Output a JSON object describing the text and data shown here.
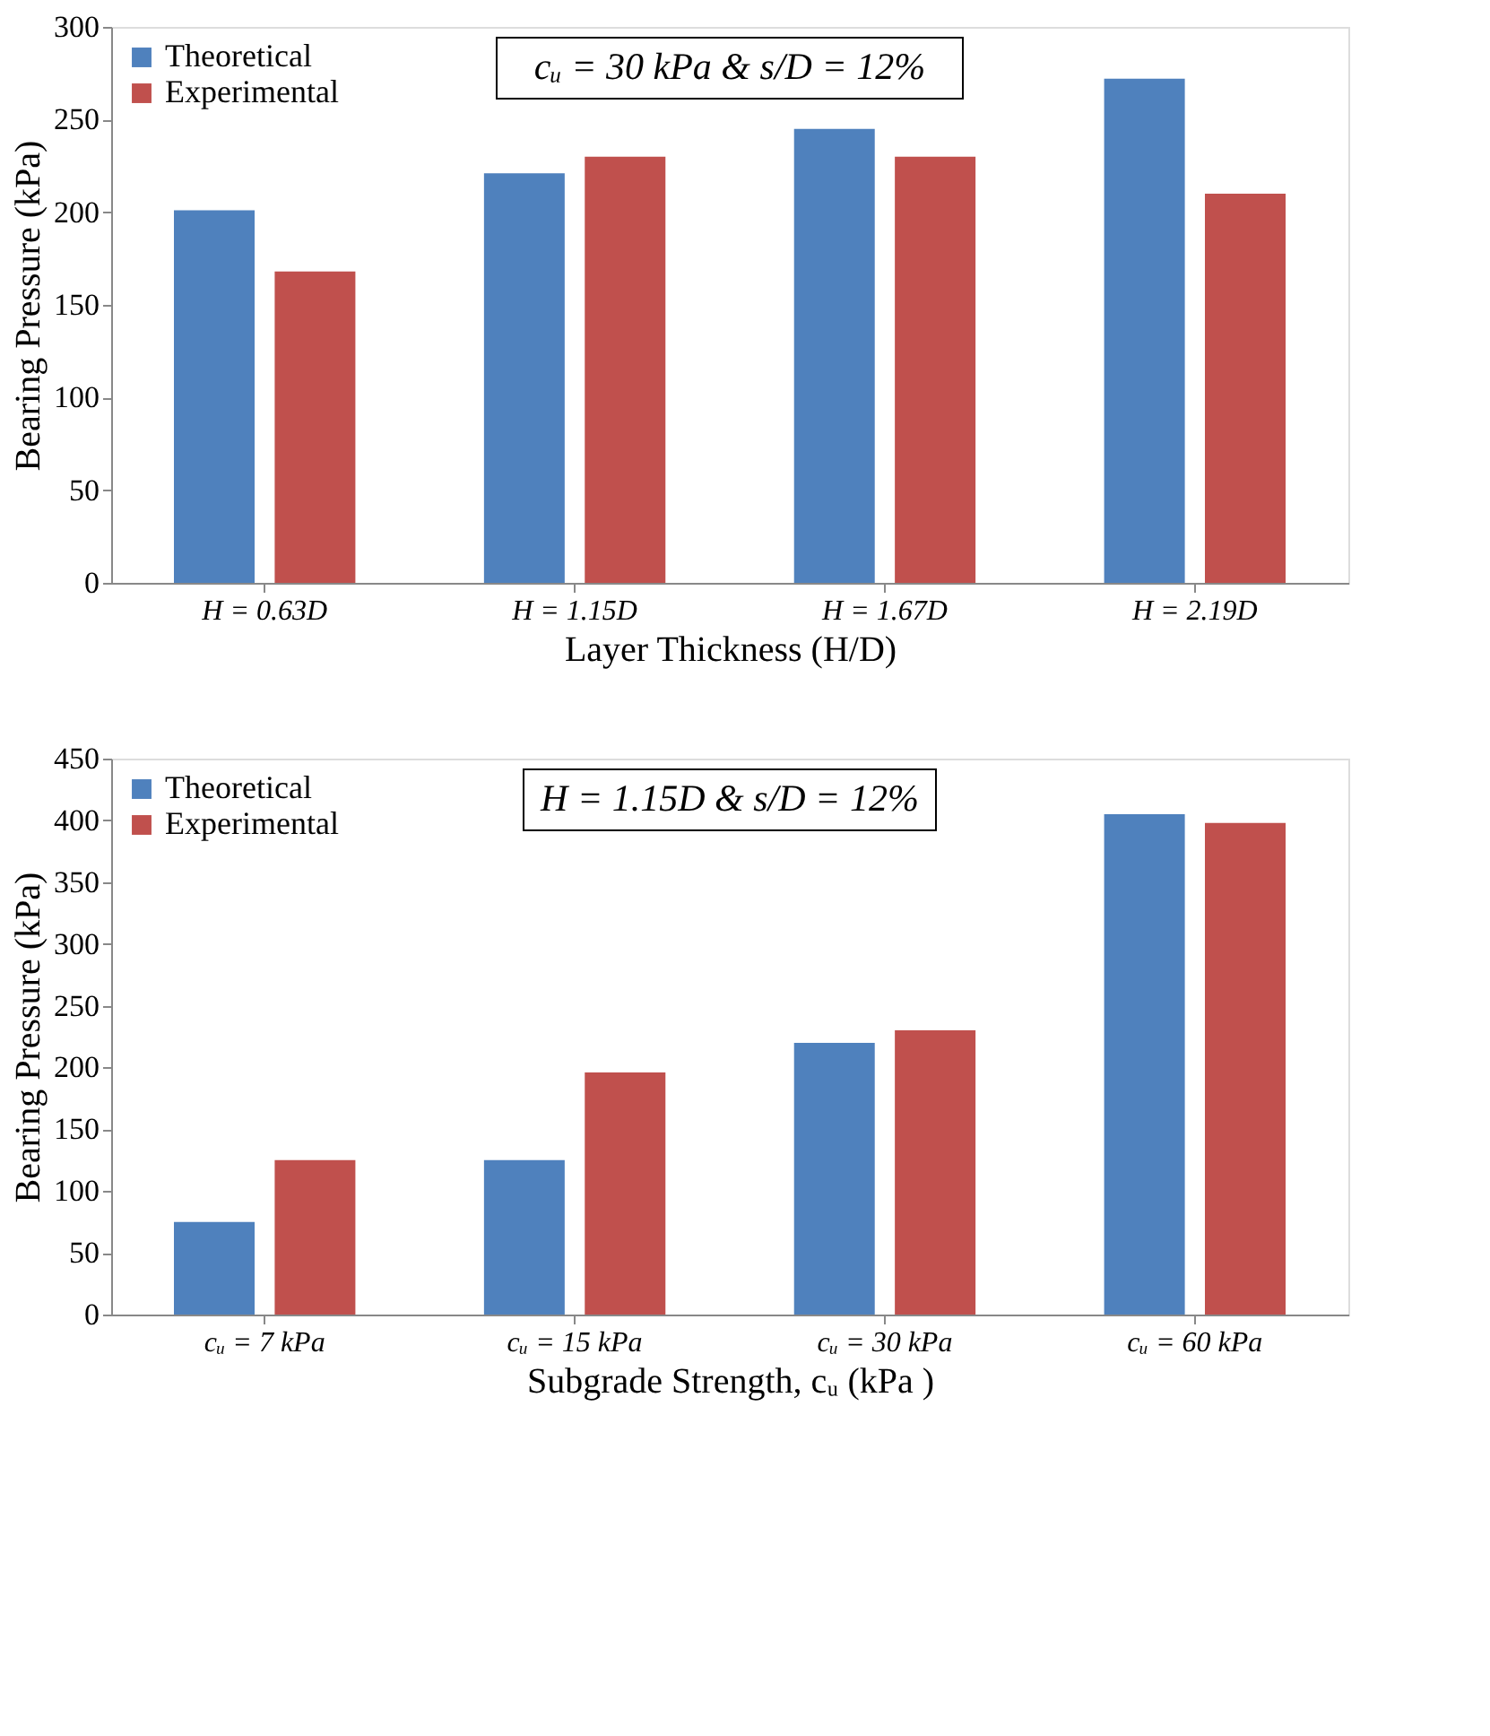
{
  "chart_data": [
    {
      "type": "bar",
      "categories": [
        "H = 0.63D",
        "H = 1.15D",
        "H = 1.67D",
        "H = 2.19D"
      ],
      "xlabel": "Layer Thickness (H/D)",
      "ylabel": "Bearing Pressure (kPa)",
      "ylim": [
        0,
        300
      ],
      "yticks": [
        0,
        50,
        100,
        150,
        200,
        250,
        300
      ],
      "legend": "top left",
      "grid": false,
      "annotations": [
        "cᵤ = 30 kPa &  s/D = 12%"
      ],
      "series": [
        {
          "name": "Theoretical",
          "color": "#4f81bd",
          "values": [
            201,
            221,
            245,
            272
          ]
        },
        {
          "name": "Experimental",
          "color": "#c0504d",
          "values": [
            168,
            230,
            230,
            210
          ]
        }
      ]
    },
    {
      "type": "bar",
      "categories": [
        "cᵤ = 7 kPa",
        "cᵤ = 15 kPa",
        "cᵤ = 30 kPa",
        "cᵤ = 60 kPa"
      ],
      "xlabel": "Subgrade Strength, cᵤ (kPa )",
      "ylabel": "Bearing Pressure (kPa)",
      "ylim": [
        0,
        450
      ],
      "yticks": [
        0,
        50,
        100,
        150,
        200,
        250,
        300,
        350,
        400,
        450
      ],
      "legend": "top left",
      "grid": false,
      "annotations": [
        "H = 1.15D & s/D = 12%"
      ],
      "series": [
        {
          "name": "Theoretical",
          "color": "#4f81bd",
          "values": [
            75,
            125,
            220,
            405
          ]
        },
        {
          "name": "Experimental",
          "color": "#c0504d",
          "values": [
            125,
            196,
            230,
            398
          ]
        }
      ]
    }
  ]
}
